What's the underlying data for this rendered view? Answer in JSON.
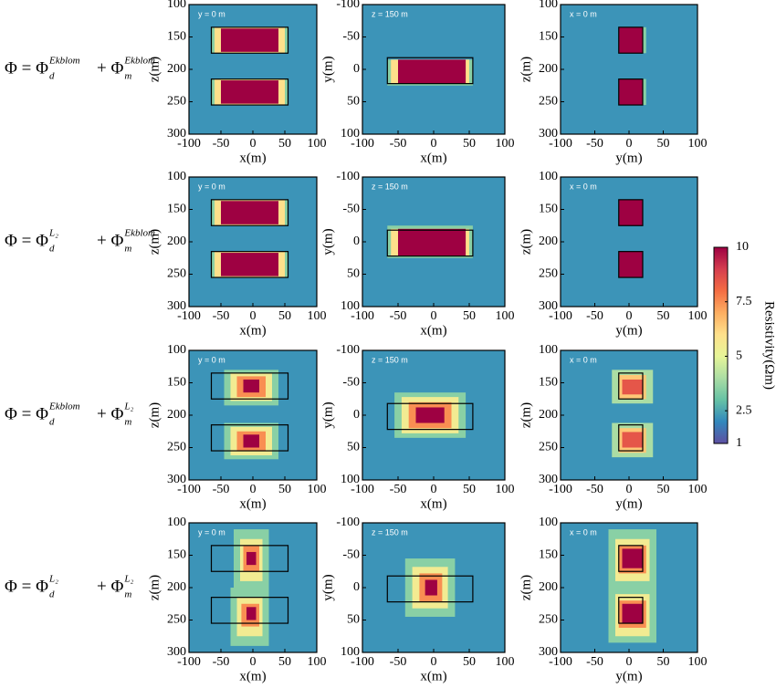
{
  "chart_data": [
    {
      "type": "heatmap",
      "annotation": "y = 0 m",
      "xlabel": "x(m)",
      "ylabel": "z(m)",
      "xlim": [
        -100,
        100
      ],
      "ylim": [
        100,
        300
      ],
      "xticks": [
        -100,
        -50,
        0,
        50,
        100
      ],
      "yticks": [
        100,
        150,
        200,
        250,
        300
      ],
      "background": 2.2,
      "cells": [
        [
          -65,
          55,
          135,
          175,
          3.5
        ],
        [
          -60,
          50,
          135,
          175,
          6
        ],
        [
          -50,
          40,
          137,
          173,
          10
        ],
        [
          -65,
          55,
          215,
          255,
          3.5
        ],
        [
          -60,
          50,
          215,
          255,
          6
        ],
        [
          -50,
          40,
          217,
          253,
          10
        ]
      ],
      "boxes": [
        [
          -65,
          55,
          135,
          175
        ],
        [
          -65,
          55,
          215,
          255
        ]
      ]
    },
    {
      "type": "heatmap",
      "annotation": "z = 150 m",
      "xlabel": "x(m)",
      "ylabel": "y(m)",
      "xlim": [
        -100,
        100
      ],
      "ylim": [
        -100,
        100
      ],
      "xticks": [
        -100,
        -50,
        0,
        50,
        100
      ],
      "yticks": [
        -100,
        -50,
        0,
        50,
        100
      ],
      "background": 2.2,
      "cells": [
        [
          -65,
          55,
          -15,
          25,
          3.5
        ],
        [
          -60,
          50,
          -15,
          22,
          6
        ],
        [
          -50,
          45,
          -15,
          22,
          10
        ]
      ],
      "boxes": [
        [
          -65,
          55,
          -18,
          22
        ]
      ]
    },
    {
      "type": "heatmap",
      "annotation": "x = 0 m",
      "xlabel": "y(m)",
      "ylabel": "z(m)",
      "xlim": [
        -100,
        100
      ],
      "ylim": [
        100,
        300
      ],
      "xticks": [
        -100,
        -50,
        0,
        50,
        100
      ],
      "yticks": [
        100,
        150,
        200,
        250,
        300
      ],
      "background": 2.2,
      "cells": [
        [
          -15,
          25,
          135,
          175,
          3.5
        ],
        [
          -15,
          20,
          135,
          175,
          10
        ],
        [
          -15,
          25,
          215,
          255,
          3.5
        ],
        [
          -15,
          20,
          215,
          255,
          10
        ]
      ],
      "boxes": [
        [
          -15,
          20,
          135,
          175
        ],
        [
          -15,
          20,
          215,
          255
        ]
      ]
    },
    {
      "type": "heatmap",
      "annotation": "y = 0 m",
      "xlabel": "x(m)",
      "ylabel": "z(m)",
      "xlim": [
        -100,
        100
      ],
      "ylim": [
        100,
        300
      ],
      "xticks": [
        -100,
        -50,
        0,
        50,
        100
      ],
      "yticks": [
        100,
        150,
        200,
        250,
        300
      ],
      "background": 2.2,
      "cells": [
        [
          -65,
          55,
          135,
          175,
          3.5
        ],
        [
          -60,
          50,
          135,
          175,
          6
        ],
        [
          -50,
          40,
          137,
          173,
          10
        ],
        [
          -65,
          55,
          215,
          255,
          3.5
        ],
        [
          -60,
          50,
          215,
          255,
          6
        ],
        [
          -50,
          40,
          217,
          253,
          10
        ]
      ],
      "boxes": [
        [
          -65,
          55,
          135,
          175
        ],
        [
          -65,
          55,
          215,
          255
        ]
      ]
    },
    {
      "type": "heatmap",
      "annotation": "z = 150 m",
      "xlabel": "x(m)",
      "ylabel": "y(m)",
      "xlim": [
        -100,
        100
      ],
      "ylim": [
        -100,
        100
      ],
      "xticks": [
        -100,
        -50,
        0,
        50,
        100
      ],
      "yticks": [
        -100,
        -50,
        0,
        50,
        100
      ],
      "background": 2.2,
      "cells": [
        [
          -65,
          55,
          -25,
          25,
          3.5
        ],
        [
          -60,
          50,
          -20,
          22,
          6
        ],
        [
          -50,
          45,
          -20,
          22,
          10
        ]
      ],
      "boxes": [
        [
          -65,
          55,
          -18,
          22
        ]
      ]
    },
    {
      "type": "heatmap",
      "annotation": "x = 0 m",
      "xlabel": "y(m)",
      "ylabel": "z(m)",
      "xlim": [
        -100,
        100
      ],
      "ylim": [
        100,
        300
      ],
      "xticks": [
        -100,
        -50,
        0,
        50,
        100
      ],
      "yticks": [
        100,
        150,
        200,
        250,
        300
      ],
      "background": 2.2,
      "cells": [
        [
          -15,
          20,
          135,
          175,
          10
        ],
        [
          -15,
          20,
          215,
          255,
          10
        ]
      ],
      "boxes": [
        [
          -15,
          20,
          135,
          175
        ],
        [
          -15,
          20,
          215,
          255
        ]
      ]
    },
    {
      "type": "heatmap",
      "annotation": "y = 0 m",
      "xlabel": "x(m)",
      "ylabel": "z(m)",
      "xlim": [
        -100,
        100
      ],
      "ylim": [
        100,
        300
      ],
      "xticks": [
        -100,
        -50,
        0,
        50,
        100
      ],
      "yticks": [
        100,
        150,
        200,
        250,
        300
      ],
      "background": 2.2,
      "cells": [
        [
          -45,
          40,
          130,
          185,
          3.5
        ],
        [
          -35,
          30,
          135,
          178,
          5.5
        ],
        [
          -25,
          20,
          140,
          172,
          7.5
        ],
        [
          -15,
          10,
          145,
          165,
          10
        ],
        [
          -45,
          40,
          212,
          268,
          3.5
        ],
        [
          -35,
          30,
          218,
          262,
          5.5
        ],
        [
          -25,
          20,
          225,
          255,
          7.5
        ],
        [
          -15,
          10,
          230,
          250,
          10
        ]
      ],
      "boxes": [
        [
          -65,
          55,
          135,
          175
        ],
        [
          -65,
          55,
          215,
          255
        ]
      ]
    },
    {
      "type": "heatmap",
      "annotation": "z = 150 m",
      "xlabel": "x(m)",
      "ylabel": "y(m)",
      "xlim": [
        -100,
        100
      ],
      "ylim": [
        -100,
        100
      ],
      "xticks": [
        -100,
        -50,
        0,
        50,
        100
      ],
      "yticks": [
        -100,
        -50,
        0,
        50,
        100
      ],
      "background": 2.2,
      "cells": [
        [
          -55,
          45,
          -35,
          35,
          3.5
        ],
        [
          -45,
          35,
          -28,
          28,
          5.5
        ],
        [
          -35,
          25,
          -20,
          20,
          7.5
        ],
        [
          -25,
          15,
          -12,
          12,
          10
        ]
      ],
      "boxes": [
        [
          -65,
          55,
          -18,
          22
        ]
      ]
    },
    {
      "type": "heatmap",
      "annotation": "x = 0 m",
      "xlabel": "y(m)",
      "ylabel": "z(m)",
      "xlim": [
        -100,
        100
      ],
      "ylim": [
        100,
        300
      ],
      "xticks": [
        -100,
        -50,
        0,
        50,
        100
      ],
      "yticks": [
        100,
        150,
        200,
        250,
        300
      ],
      "background": 2.2,
      "cells": [
        [
          -25,
          35,
          130,
          182,
          4
        ],
        [
          -15,
          25,
          138,
          175,
          6.5
        ],
        [
          -10,
          20,
          145,
          168,
          8.5
        ],
        [
          -25,
          35,
          212,
          265,
          4
        ],
        [
          -15,
          25,
          220,
          258,
          6.5
        ],
        [
          -10,
          20,
          226,
          250,
          8.5
        ]
      ],
      "boxes": [
        [
          -15,
          20,
          135,
          175
        ],
        [
          -15,
          20,
          215,
          255
        ]
      ]
    },
    {
      "type": "heatmap",
      "annotation": "y = 0 m",
      "xlabel": "x(m)",
      "ylabel": "z(m)",
      "xlim": [
        -100,
        100
      ],
      "ylim": [
        100,
        300
      ],
      "xticks": [
        -100,
        -50,
        0,
        50,
        100
      ],
      "yticks": [
        100,
        150,
        200,
        250,
        300
      ],
      "background": 2.2,
      "cells": [
        [
          -30,
          25,
          110,
          205,
          3.5
        ],
        [
          -20,
          15,
          125,
          190,
          5.5
        ],
        [
          -15,
          10,
          135,
          175,
          7.5
        ],
        [
          -10,
          5,
          145,
          165,
          10
        ],
        [
          -35,
          25,
          200,
          290,
          3.5
        ],
        [
          -25,
          15,
          215,
          275,
          5.5
        ],
        [
          -18,
          10,
          225,
          260,
          7.5
        ],
        [
          -10,
          5,
          230,
          250,
          10
        ]
      ],
      "boxes": [
        [
          -65,
          55,
          135,
          175
        ],
        [
          -65,
          55,
          215,
          255
        ]
      ]
    },
    {
      "type": "heatmap",
      "annotation": "z = 150 m",
      "xlabel": "x(m)",
      "ylabel": "y(m)",
      "xlim": [
        -100,
        100
      ],
      "ylim": [
        -100,
        100
      ],
      "xticks": [
        -100,
        -50,
        0,
        50,
        100
      ],
      "yticks": [
        -100,
        -50,
        0,
        50,
        100
      ],
      "background": 2.2,
      "cells": [
        [
          -40,
          30,
          -45,
          45,
          3.5
        ],
        [
          -30,
          20,
          -32,
          32,
          5.5
        ],
        [
          -20,
          12,
          -22,
          22,
          7.5
        ],
        [
          -12,
          5,
          -12,
          12,
          10
        ]
      ],
      "boxes": [
        [
          -65,
          55,
          -18,
          22
        ]
      ]
    },
    {
      "type": "heatmap",
      "annotation": "x = 0 m",
      "xlabel": "y(m)",
      "ylabel": "z(m)",
      "xlim": [
        -100,
        100
      ],
      "ylim": [
        100,
        300
      ],
      "xticks": [
        -100,
        -50,
        0,
        50,
        100
      ],
      "yticks": [
        100,
        150,
        200,
        250,
        300
      ],
      "background": 2.2,
      "cells": [
        [
          -30,
          40,
          110,
          205,
          3.5
        ],
        [
          -20,
          30,
          125,
          190,
          5.5
        ],
        [
          -15,
          25,
          135,
          178,
          7.5
        ],
        [
          -10,
          20,
          140,
          170,
          10
        ],
        [
          -30,
          40,
          200,
          285,
          3.5
        ],
        [
          -20,
          30,
          210,
          275,
          5.5
        ],
        [
          -15,
          25,
          220,
          262,
          7.5
        ],
        [
          -10,
          20,
          225,
          255,
          10
        ]
      ],
      "boxes": [
        [
          -15,
          20,
          135,
          175
        ],
        [
          -15,
          20,
          215,
          255
        ]
      ]
    },
    {
      "type": "colorbar",
      "title": "Resistivity(Ωm)",
      "ylim": [
        1,
        10
      ],
      "yticks": [
        1,
        2.5,
        5,
        7.5,
        10
      ],
      "colors": [
        "#5e4fa2",
        "#3288bd",
        "#66c2a5",
        "#abdda4",
        "#e6f598",
        "#fee08b",
        "#fdae61",
        "#f46d43",
        "#d53e4f",
        "#9e0142"
      ]
    }
  ],
  "row_labels": [
    {
      "main": "Φ = Φ",
      "sub1": "d",
      "sup1": "Ekblom",
      "plus": "+ Φ",
      "sub2": "m",
      "sup2": "Ekblom"
    },
    {
      "main": "Φ = Φ",
      "sub1": "d",
      "sup1": "L₂",
      "plus": "+ Φ",
      "sub2": "m",
      "sup2": "Ekblom"
    },
    {
      "main": "Φ = Φ",
      "sub1": "d",
      "sup1": "Ekblom",
      "plus": "+ Φ",
      "sub2": "m",
      "sup2": "L₂"
    },
    {
      "main": "Φ = Φ",
      "sub1": "d",
      "sup1": "L₂",
      "plus": "+ Φ",
      "sub2": "m",
      "sup2": "L₂"
    }
  ]
}
